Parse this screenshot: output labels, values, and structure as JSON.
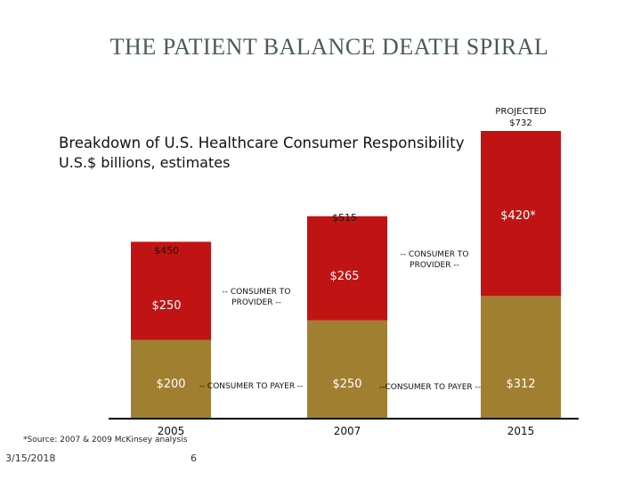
{
  "chart_data": {
    "type": "bar",
    "stacked": true,
    "title": "THE PATIENT BALANCE DEATH SPIRAL",
    "subtitle_line1": "Breakdown of U.S. Healthcare Consumer Responsibility",
    "subtitle_line2": "U.S.$ billions, estimates",
    "categories": [
      "2005",
      "2007",
      "2015"
    ],
    "series": [
      {
        "name": "CONSUMER TO PAYER",
        "color": "#a07f30",
        "values": [
          200,
          250,
          312
        ],
        "labels": [
          "$200",
          "$250",
          "$312"
        ]
      },
      {
        "name": "CONSUMER TO PROVIDER",
        "color": "#c01414",
        "values": [
          250,
          265,
          420
        ],
        "labels": [
          "$250",
          "$265",
          "$420*"
        ]
      }
    ],
    "totals": [
      450,
      515,
      732
    ],
    "total_labels": [
      "$450",
      "$515",
      "PROJECTED $732"
    ],
    "ylim": [
      0,
      732
    ],
    "annotations": [
      "-- CONSUMER TO PAYER --",
      "-- CONSUMER TO PROVIDER --",
      "--CONSUMER TO PAYER --",
      "-- CONSUMER TO PROVIDER --"
    ]
  },
  "footer": {
    "source": "*Source: 2007 & 2009 McKinsey analysis",
    "date": "3/15/2018",
    "page": "6"
  }
}
